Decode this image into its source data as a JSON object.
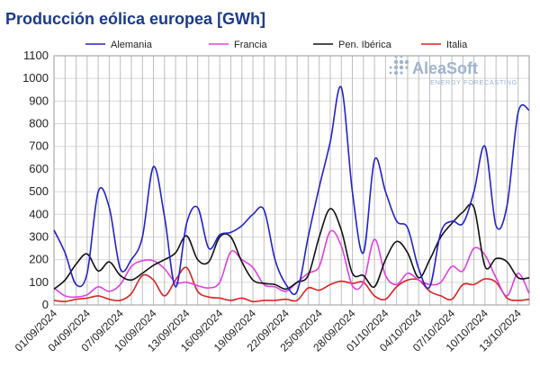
{
  "chart_data": {
    "type": "line",
    "title": "Producción eólica europea [GWh]",
    "xlabel": "",
    "ylabel": "",
    "ylim": [
      0,
      1100
    ],
    "yticks": [
      0,
      100,
      200,
      300,
      400,
      500,
      600,
      700,
      800,
      900,
      1000,
      1100
    ],
    "x_tick_labels": [
      "01/09/2024",
      "04/09/2024",
      "07/09/2024",
      "10/09/2024",
      "13/09/2024",
      "16/09/2024",
      "19/09/2024",
      "22/09/2024",
      "25/09/2024",
      "28/09/2024",
      "01/10/2024",
      "04/10/2024",
      "07/10/2024",
      "10/10/2024",
      "13/10/2024"
    ],
    "x": [
      "01/09",
      "02/09",
      "03/09",
      "04/09",
      "05/09",
      "06/09",
      "07/09",
      "08/09",
      "09/09",
      "10/09",
      "11/09",
      "12/09",
      "13/09",
      "14/09",
      "15/09",
      "16/09",
      "17/09",
      "18/09",
      "19/09",
      "20/09",
      "21/09",
      "22/09",
      "23/09",
      "24/09",
      "25/09",
      "26/09",
      "27/09",
      "28/09",
      "29/09",
      "30/09",
      "01/10",
      "02/10",
      "03/10",
      "04/10",
      "05/10",
      "06/10",
      "07/10",
      "08/10",
      "09/10",
      "10/10",
      "11/10",
      "12/10",
      "13/10",
      "14/10"
    ],
    "grid": true,
    "legend_position": "top",
    "series": [
      {
        "name": "Alemania",
        "color": "#2222cc",
        "values": [
          330,
          230,
          90,
          140,
          500,
          430,
          160,
          200,
          300,
          610,
          390,
          80,
          360,
          430,
          250,
          310,
          320,
          350,
          400,
          420,
          200,
          90,
          60,
          300,
          520,
          720,
          960,
          500,
          230,
          640,
          500,
          370,
          340,
          160,
          80,
          320,
          370,
          360,
          500,
          700,
          350,
          440,
          850,
          860
        ]
      },
      {
        "name": "Francia",
        "color": "#e040e0",
        "values": [
          75,
          40,
          35,
          45,
          80,
          60,
          90,
          170,
          195,
          195,
          160,
          100,
          100,
          85,
          75,
          100,
          235,
          200,
          165,
          90,
          80,
          60,
          100,
          140,
          170,
          325,
          260,
          85,
          100,
          290,
          130,
          90,
          140,
          110,
          90,
          100,
          170,
          150,
          250,
          220,
          120,
          40,
          140,
          50
        ]
      },
      {
        "name": "Pen. Ibérica",
        "color": "#111111",
        "values": [
          70,
          110,
          180,
          225,
          150,
          190,
          130,
          110,
          140,
          175,
          200,
          230,
          305,
          200,
          190,
          300,
          300,
          190,
          110,
          95,
          90,
          70,
          100,
          130,
          300,
          425,
          330,
          140,
          130,
          80,
          200,
          280,
          230,
          120,
          200,
          300,
          360,
          410,
          430,
          170,
          205,
          190,
          120,
          120
        ]
      },
      {
        "name": "Italia",
        "color": "#dd2222",
        "values": [
          20,
          15,
          25,
          30,
          40,
          25,
          20,
          50,
          130,
          110,
          40,
          110,
          165,
          60,
          35,
          30,
          20,
          30,
          15,
          20,
          20,
          25,
          20,
          75,
          65,
          90,
          105,
          95,
          100,
          40,
          25,
          80,
          110,
          110,
          60,
          40,
          25,
          90,
          90,
          115,
          100,
          30,
          20,
          25
        ]
      }
    ]
  },
  "logo": {
    "name": "AleaSoft",
    "tagline": "ENERGY FORECASTING",
    "icon": "dots-grid-icon",
    "color": "#9fb3cc"
  }
}
